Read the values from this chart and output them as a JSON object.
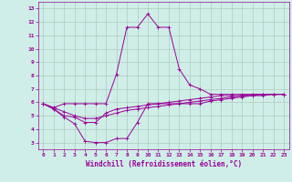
{
  "bg_color": "#d0eee8",
  "line_color": "#990099",
  "grid_color": "#aaccbb",
  "hours": [
    0,
    1,
    2,
    3,
    4,
    5,
    6,
    7,
    8,
    9,
    10,
    11,
    12,
    13,
    14,
    15,
    16,
    17,
    18,
    19,
    20,
    21,
    22,
    23
  ],
  "temp": [
    5.9,
    5.6,
    5.9,
    5.9,
    5.9,
    5.9,
    5.9,
    8.1,
    11.6,
    11.6,
    12.6,
    11.6,
    11.6,
    8.5,
    7.3,
    7.0,
    6.6,
    6.6,
    6.6,
    6.6,
    6.6,
    6.6,
    6.6,
    6.6
  ],
  "windchill": [
    5.9,
    5.5,
    4.9,
    4.4,
    3.1,
    3.0,
    3.0,
    3.3,
    3.3,
    4.5,
    5.9,
    5.9,
    5.9,
    5.9,
    5.9,
    5.9,
    6.1,
    6.2,
    6.3,
    6.4,
    6.5,
    6.5,
    6.6,
    6.6
  ],
  "ref1": [
    5.9,
    5.5,
    5.0,
    4.9,
    4.5,
    4.5,
    5.2,
    5.5,
    5.6,
    5.7,
    5.8,
    5.9,
    6.0,
    6.1,
    6.2,
    6.3,
    6.4,
    6.5,
    6.5,
    6.5,
    6.6,
    6.6,
    6.6,
    6.6
  ],
  "ref2": [
    5.9,
    5.6,
    5.3,
    5.0,
    4.8,
    4.8,
    5.0,
    5.2,
    5.4,
    5.5,
    5.6,
    5.7,
    5.8,
    5.9,
    6.0,
    6.1,
    6.2,
    6.3,
    6.4,
    6.5,
    6.5,
    6.6,
    6.6,
    6.6
  ],
  "ylim": [
    2.5,
    13.5
  ],
  "xlim": [
    -0.5,
    23.5
  ],
  "yticks": [
    3,
    4,
    5,
    6,
    7,
    8,
    9,
    10,
    11,
    12,
    13
  ],
  "xticks": [
    0,
    1,
    2,
    3,
    4,
    5,
    6,
    7,
    8,
    9,
    10,
    11,
    12,
    13,
    14,
    15,
    16,
    17,
    18,
    19,
    20,
    21,
    22,
    23
  ],
  "tick_fontsize": 4.5,
  "xlabel": "Windchill (Refroidissement éolien,°C)",
  "xlabel_fontsize": 5.5
}
